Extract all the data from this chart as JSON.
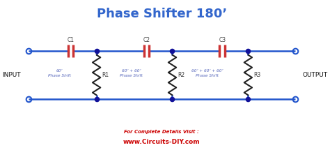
{
  "title": "Phase Shifter 180’",
  "title_color": "#3366cc",
  "title_fontsize": 13,
  "title_fontweight": "bold",
  "wire_color": "#2255cc",
  "wire_linewidth": 1.8,
  "resistor_color": "#222222",
  "cap_plate_left_color": "#cc3333",
  "cap_plate_right_color": "#cc3333",
  "dot_color": "#111199",
  "label_color": "#5566bb",
  "background_color": "#ffffff",
  "footer_text1": "For Complete Details Visit :",
  "footer_text2": "www.Circuits-DIY.com",
  "footer_color": "#cc0000",
  "footer2_color": "#cc0000",
  "input_label": "INPUT",
  "output_label": "OUTPUT",
  "cap_labels": [
    "C1",
    "C2",
    "C3"
  ],
  "res_labels": [
    "R1",
    "R2",
    "R3"
  ],
  "phase_labels": [
    "60’\nPhase Shift",
    "60’ + 60’\nPhase Shift",
    "60’ + 60’ + 60’\nPhase Shift"
  ]
}
